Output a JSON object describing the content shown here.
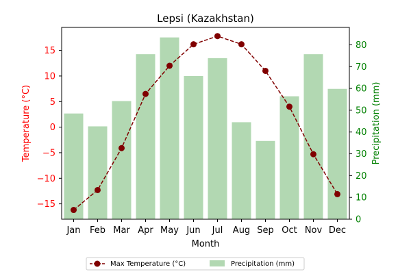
{
  "chart_data": {
    "type": "bar+line",
    "title": "Lepsi (Kazakhstan)",
    "xlabel": "Month",
    "categories": [
      "Jan",
      "Feb",
      "Mar",
      "Apr",
      "May",
      "Jun",
      "Jul",
      "Aug",
      "Sep",
      "Oct",
      "Nov",
      "Dec"
    ],
    "left_axis": {
      "label": "Temperature (°C)",
      "color": "#ff0000",
      "ylim": [
        -18,
        19.5
      ],
      "ticks": [
        -15,
        -10,
        -5,
        0,
        5,
        10,
        15
      ],
      "tick_labels": [
        "−15",
        "−10",
        "−5",
        "0",
        "5",
        "10",
        "15"
      ]
    },
    "right_axis": {
      "label": "Precipitation (mm)",
      "color": "#008000",
      "ylim": [
        0,
        88
      ],
      "ticks": [
        0,
        10,
        20,
        30,
        40,
        50,
        60,
        70,
        80
      ],
      "tick_labels": [
        "0",
        "10",
        "20",
        "30",
        "40",
        "50",
        "60",
        "70",
        "80"
      ]
    },
    "series": [
      {
        "name": "Max Temperature (°C)",
        "kind": "line",
        "axis": "left",
        "color": "#800000",
        "style": "dashed with circle markers",
        "values": [
          -16.2,
          -12.3,
          -4.1,
          6.5,
          12.0,
          16.2,
          17.8,
          16.2,
          11.0,
          4.0,
          -5.3,
          -13.1
        ]
      },
      {
        "name": "Precipitation (mm)",
        "kind": "bar",
        "axis": "right",
        "color": "#b2d8b2",
        "values": [
          48.5,
          42.6,
          54.2,
          75.7,
          83.4,
          65.7,
          73.9,
          44.5,
          35.9,
          56.4,
          75.7,
          59.8
        ]
      }
    ],
    "legend": {
      "placement": "bottom-center",
      "entries": [
        "Max Temperature (°C)",
        "Precipitation (mm)"
      ]
    },
    "grid": false
  }
}
